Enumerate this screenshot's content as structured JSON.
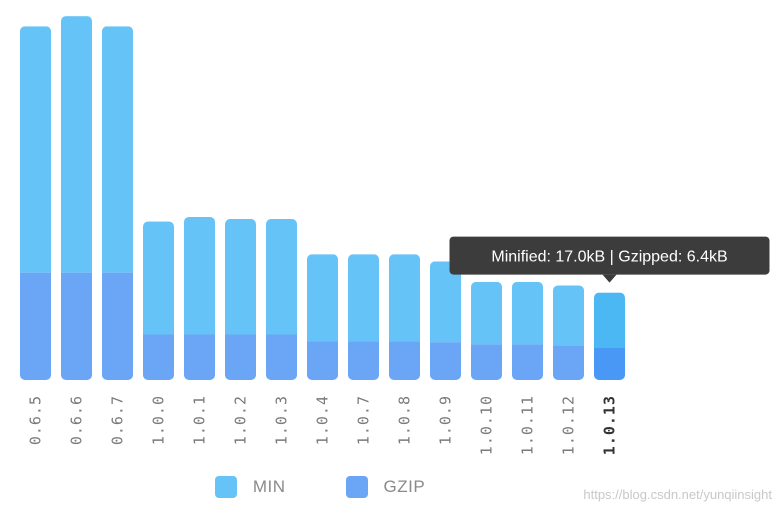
{
  "chart_data": {
    "type": "bar",
    "stacked": true,
    "categories": [
      "0.6.5",
      "0.6.6",
      "0.6.7",
      "1.0.0",
      "1.0.1",
      "1.0.2",
      "1.0.3",
      "1.0.4",
      "1.0.7",
      "1.0.8",
      "1.0.9",
      "1.0.10",
      "1.0.11",
      "1.0.12",
      "1.0.13"
    ],
    "series": [
      {
        "name": "GZIP",
        "color": "#6aa6f5",
        "active_color": "#4a98f5",
        "values": [
          21.0,
          21.0,
          21.0,
          8.9,
          8.9,
          8.9,
          8.9,
          7.6,
          7.6,
          7.6,
          7.4,
          7.0,
          7.0,
          6.8,
          6.4
        ]
      },
      {
        "name": "MIN",
        "color": "#66c3f7",
        "active_color": "#4bb8f3",
        "values": [
          48.2,
          50.2,
          48.2,
          22.1,
          23.0,
          22.6,
          22.6,
          17.0,
          17.0,
          17.0,
          15.8,
          12.2,
          12.2,
          11.7,
          10.7
        ]
      }
    ],
    "ylim": [
      0,
      72
    ],
    "active_index": 14,
    "tooltip": "Minified: 17.0kB | Gzipped: 6.4kB",
    "legend": [
      "MIN",
      "GZIP"
    ],
    "legend_position": "bottom",
    "grid": false
  },
  "watermark": "https://blog.csdn.net/yunqiinsight"
}
